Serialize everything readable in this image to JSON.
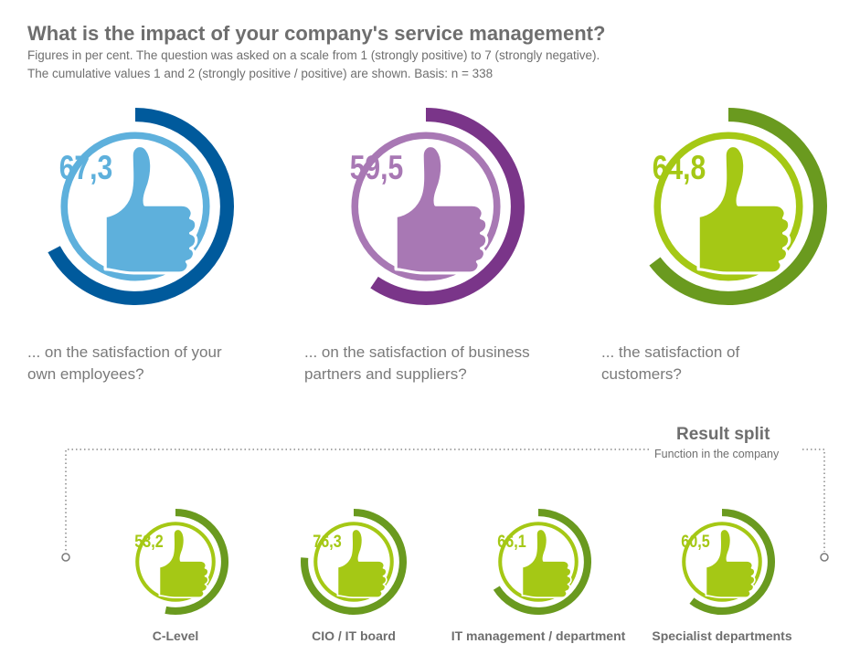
{
  "header": {
    "title": "What is the impact of your company's service management?",
    "subtitle_line1": "Figures in per cent. The question was asked on a scale from 1 (strongly positive) to 7 (strongly negative).",
    "subtitle_line2": "The cumulative values 1 and 2 (strongly positive / positive) are shown. Basis: n = 338"
  },
  "questions": [
    {
      "label_line1": "... on the satisfaction of your",
      "label_line2": "own employees?"
    },
    {
      "label_line1": "... on the satisfaction of business",
      "label_line2": "partners and suppliers?"
    },
    {
      "label_line1": "... the satisfaction of",
      "label_line2": "customers?"
    }
  ],
  "split": {
    "title": "Result split",
    "subtitle": "Function in the company"
  },
  "colors": {
    "blue_dark": "#005a9c",
    "blue_light": "#5eb0dc",
    "purple_dark": "#7a3589",
    "purple_light": "#a878b4",
    "green_dark": "#6a9a1f",
    "green_light": "#a5c815",
    "track": "#e6e6e6"
  },
  "chart_data": [
    {
      "type": "radial-gauge",
      "unit": "per cent",
      "max": 100,
      "categories": [
        "... on the satisfaction of your own employees?",
        "... on the satisfaction of business partners and suppliers?",
        "... the satisfaction of customers?"
      ],
      "values": [
        67.3,
        59.5,
        64.8
      ],
      "value_labels": [
        "67,3",
        "59,5",
        "64,8"
      ]
    },
    {
      "type": "radial-gauge",
      "unit": "per cent",
      "max": 100,
      "title": "Result split",
      "subtitle": "Function in the company",
      "categories": [
        "C-Level",
        "CIO / IT board",
        "IT management / department",
        "Specialist departments"
      ],
      "values": [
        53.2,
        76.3,
        66.1,
        60.5
      ],
      "value_labels": [
        "53,2",
        "76,3",
        "66,1",
        "60,5"
      ]
    }
  ]
}
